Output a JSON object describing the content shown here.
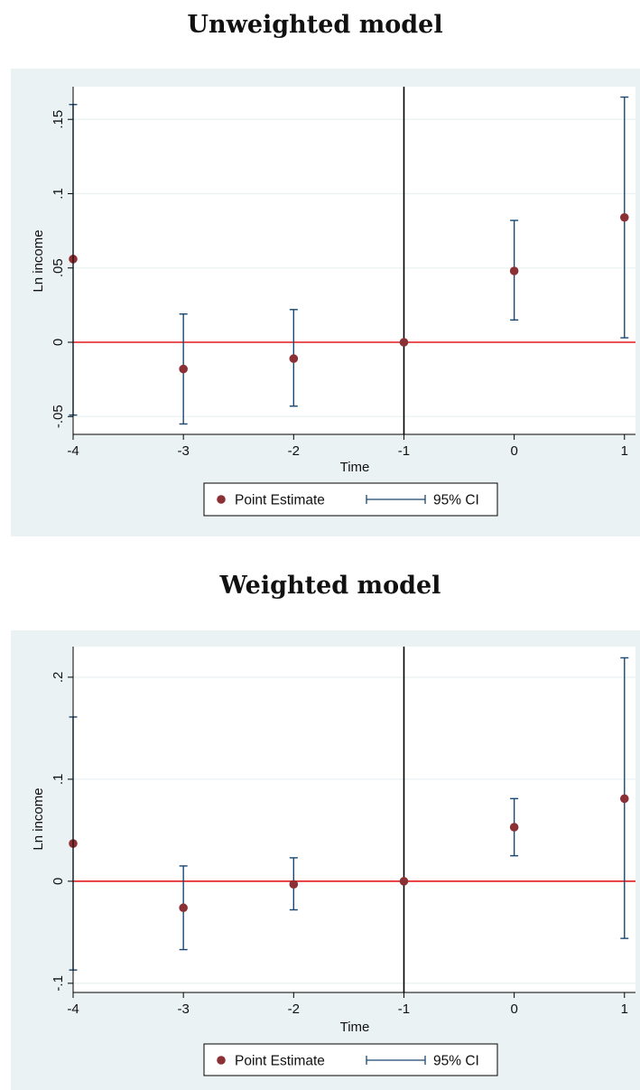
{
  "colors": {
    "panel_background": "#eaf2f3",
    "plot_background": "#ffffff",
    "gridline": "#eaf2f3",
    "point_estimate": "#8b3035",
    "confidence_interval": "#1a476f",
    "zero_reference_line": "#e41a1c",
    "event_time_line": "#000000"
  },
  "chart_data": [
    {
      "type": "scatter",
      "title": "Unweighted model",
      "xlabel": "Time",
      "ylabel": "Ln income",
      "x_ticks": [
        -4,
        -3,
        -2,
        -1,
        0,
        1
      ],
      "x_tick_labels": [
        "-4",
        "-3",
        "-2",
        "-1",
        "0",
        "1"
      ],
      "y_ticks": [
        -0.05,
        0,
        0.05,
        0.1,
        0.15
      ],
      "y_tick_labels": [
        "-.05",
        "0",
        ".05",
        ".1",
        ".15"
      ],
      "xlim": [
        -4,
        1.1
      ],
      "ylim": [
        -0.062,
        0.172
      ],
      "grid": true,
      "reference_lines": {
        "horizontal_y": 0,
        "vertical_x": -1
      },
      "legend": {
        "placement": "bottom",
        "entries": [
          "Point Estimate",
          "95% CI"
        ]
      },
      "series": [
        {
          "name": "Point Estimate",
          "x": [
            -4,
            -3,
            -2,
            -1,
            0,
            1
          ],
          "y": [
            0.056,
            -0.018,
            -0.011,
            0.0,
            0.048,
            0.084
          ]
        },
        {
          "name": "95% CI",
          "x": [
            -4,
            -3,
            -2,
            -1,
            0,
            1
          ],
          "lower": [
            -0.049,
            -0.055,
            -0.043,
            0.0,
            0.015,
            0.003
          ],
          "upper": [
            0.16,
            0.019,
            0.022,
            0.0,
            0.082,
            0.165
          ]
        }
      ]
    },
    {
      "type": "scatter",
      "title": "Weighted model",
      "xlabel": "Time",
      "ylabel": "Ln income",
      "x_ticks": [
        -4,
        -3,
        -2,
        -1,
        0,
        1
      ],
      "x_tick_labels": [
        "-4",
        "-3",
        "-2",
        "-1",
        "0",
        "1"
      ],
      "y_ticks": [
        -0.1,
        0,
        0.1,
        0.2
      ],
      "y_tick_labels": [
        "-.1",
        "0",
        ".1",
        ".2"
      ],
      "xlim": [
        -4,
        1.1
      ],
      "ylim": [
        -0.109,
        0.23
      ],
      "grid": true,
      "reference_lines": {
        "horizontal_y": 0,
        "vertical_x": -1
      },
      "legend": {
        "placement": "bottom",
        "entries": [
          "Point Estimate",
          "95% CI"
        ]
      },
      "series": [
        {
          "name": "Point Estimate",
          "x": [
            -4,
            -3,
            -2,
            -1,
            0,
            1
          ],
          "y": [
            0.037,
            -0.026,
            -0.003,
            0.0,
            0.053,
            0.081
          ]
        },
        {
          "name": "95% CI",
          "x": [
            -4,
            -3,
            -2,
            -1,
            0,
            1
          ],
          "lower": [
            -0.087,
            -0.067,
            -0.028,
            0.0,
            0.025,
            -0.056
          ],
          "upper": [
            0.161,
            0.015,
            0.023,
            0.0,
            0.081,
            0.219
          ]
        }
      ]
    }
  ]
}
